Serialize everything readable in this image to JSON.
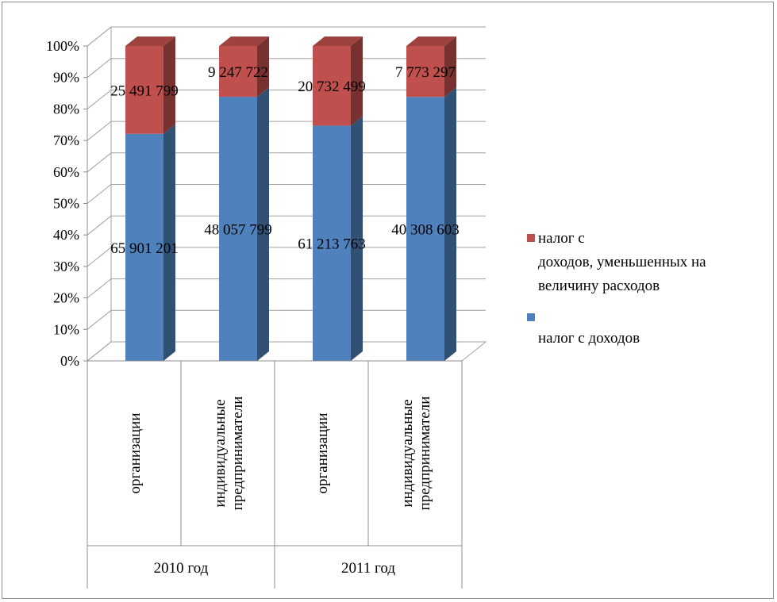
{
  "chart_data": {
    "type": "bar",
    "stacked": "percent",
    "three_d": true,
    "y_ticks": [
      "0%",
      "10%",
      "20%",
      "30%",
      "40%",
      "50%",
      "60%",
      "70%",
      "80%",
      "90%",
      "100%"
    ],
    "ylim": [
      0,
      100
    ],
    "grid": true,
    "categories": [
      {
        "label": "организации",
        "group": "2010 год"
      },
      {
        "label": "индивидуальные предприниматели",
        "group": "2010 год"
      },
      {
        "label": "организации",
        "group": "2011 год"
      },
      {
        "label": "индивидуальные предприниматели",
        "group": "2011 год"
      }
    ],
    "groups": [
      "2010 год",
      "2011 год"
    ],
    "series": [
      {
        "name": "налог с доходов",
        "color": "#4f81bd",
        "values": [
          65901201,
          48057799,
          61213763,
          40308603
        ],
        "labels": [
          "65 901 201",
          "48 057 799",
          "61 213 763",
          "40 308 603"
        ]
      },
      {
        "name": "налог с доходов, уменьшенных на величину расходов",
        "color": "#c0504d",
        "values": [
          25491799,
          9247722,
          20732499,
          7773297
        ],
        "labels": [
          "25 491 799",
          "9 247 722",
          "20 732 499",
          "7 773 297"
        ]
      }
    ],
    "legend": {
      "placement": "right",
      "items": [
        {
          "lines": [
            "налог с",
            "доходов, уменьшенных на",
            "величину расходов"
          ],
          "color": "#c0504d"
        },
        {
          "lines": [
            "налог с доходов"
          ],
          "color": "#4f81bd"
        }
      ]
    }
  }
}
